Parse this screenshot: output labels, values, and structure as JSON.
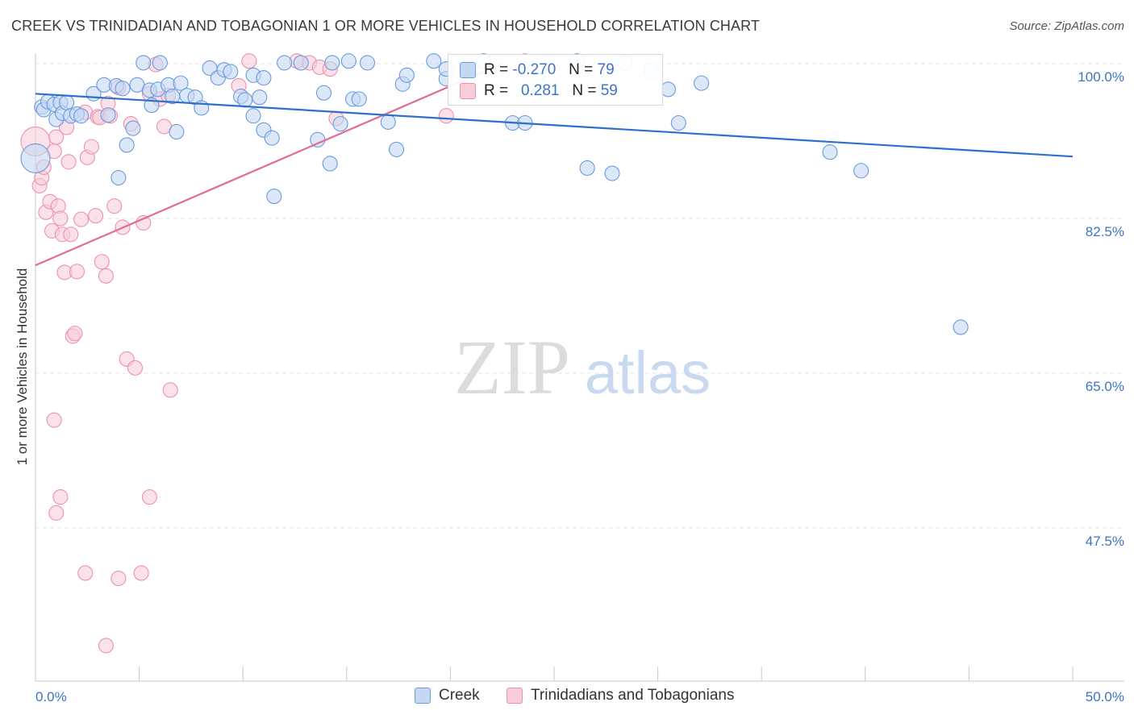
{
  "title": "CREEK VS TRINIDADIAN AND TOBAGONIAN 1 OR MORE VEHICLES IN HOUSEHOLD CORRELATION CHART",
  "source": "Source: ZipAtlas.com",
  "watermark": {
    "zip": "ZIP",
    "atlas": "atlas"
  },
  "colors": {
    "creek": "#6a9ae0",
    "creek_fill": "#c5d8f3",
    "creek_line": "#2c6fcb",
    "trin": "#ee90ad",
    "trin_fill": "#f8cdd9",
    "trin_line": "#e36b93",
    "axis_text": "#3d74c5"
  },
  "legend_top": {
    "creek": {
      "r_label": "R =",
      "r_value": "-0.270",
      "n_label": "N =",
      "n_value": "79"
    },
    "trin": {
      "r_label": "R =",
      "r_value": "0.281",
      "n_label": "N =",
      "n_value": "59"
    }
  },
  "legend_bottom": {
    "creek": "Creek",
    "trin": "Trinidadians and Tobagonians"
  },
  "chart_data": {
    "type": "scatter",
    "title": "CREEK VS TRINIDADIAN AND TOBAGONIAN 1 OR MORE VEHICLES IN HOUSEHOLD CORRELATION CHART",
    "xlabel": "",
    "ylabel": "1 or more Vehicles in Household",
    "xlim": [
      0,
      50
    ],
    "ylim": [
      33,
      101
    ],
    "x_tick_labels": [
      "0.0%",
      "50.0%"
    ],
    "y_ticks": [
      100.0,
      82.5,
      65.0,
      47.5
    ],
    "y_tick_labels": [
      "100.0%",
      "82.5%",
      "65.0%",
      "47.5%"
    ],
    "grid": true,
    "series": [
      {
        "name": "Creek",
        "R": -0.27,
        "N": 79,
        "trend": {
          "x": [
            0,
            50
          ],
          "y": [
            96.6,
            89.5
          ]
        },
        "points": [
          [
            0.0,
            89.3
          ],
          [
            0.3,
            95.1
          ],
          [
            0.4,
            94.8
          ],
          [
            0.6,
            95.7
          ],
          [
            0.9,
            95.4
          ],
          [
            1.2,
            95.6
          ],
          [
            1.0,
            93.7
          ],
          [
            1.3,
            94.4
          ],
          [
            1.5,
            95.6
          ],
          [
            1.7,
            94.1
          ],
          [
            2.0,
            94.3
          ],
          [
            2.2,
            94.1
          ],
          [
            2.8,
            96.6
          ],
          [
            3.3,
            97.6
          ],
          [
            3.5,
            94.2
          ],
          [
            3.9,
            97.5
          ],
          [
            4.2,
            97.2
          ],
          [
            4.0,
            87.1
          ],
          [
            4.4,
            90.8
          ],
          [
            4.7,
            92.7
          ],
          [
            4.9,
            97.6
          ],
          [
            5.2,
            100.1
          ],
          [
            5.5,
            97.0
          ],
          [
            5.6,
            95.3
          ],
          [
            5.9,
            97.1
          ],
          [
            6.0,
            100.1
          ],
          [
            6.4,
            97.6
          ],
          [
            6.6,
            96.3
          ],
          [
            6.8,
            92.3
          ],
          [
            7.0,
            97.8
          ],
          [
            7.3,
            96.4
          ],
          [
            7.7,
            96.2
          ],
          [
            8.0,
            95.0
          ],
          [
            8.4,
            99.5
          ],
          [
            8.8,
            98.4
          ],
          [
            9.1,
            99.3
          ],
          [
            9.4,
            99.1
          ],
          [
            9.9,
            96.3
          ],
          [
            10.1,
            95.9
          ],
          [
            10.5,
            98.7
          ],
          [
            10.8,
            96.2
          ],
          [
            10.5,
            94.1
          ],
          [
            11.0,
            92.5
          ],
          [
            11.4,
            91.6
          ],
          [
            11.0,
            98.4
          ],
          [
            12.0,
            100.1
          ],
          [
            12.8,
            100.1
          ],
          [
            11.5,
            85.0
          ],
          [
            13.6,
            91.4
          ],
          [
            13.9,
            96.7
          ],
          [
            14.2,
            88.7
          ],
          [
            14.7,
            93.2
          ],
          [
            14.3,
            100.1
          ],
          [
            15.1,
            100.3
          ],
          [
            15.3,
            96.0
          ],
          [
            15.6,
            96.0
          ],
          [
            16.0,
            100.1
          ],
          [
            17.0,
            93.4
          ],
          [
            17.4,
            90.3
          ],
          [
            17.7,
            97.7
          ],
          [
            17.9,
            98.7
          ],
          [
            19.2,
            100.3
          ],
          [
            19.8,
            98.3
          ],
          [
            19.8,
            99.4
          ],
          [
            20.8,
            98.2
          ],
          [
            21.6,
            100.3
          ],
          [
            23.0,
            93.3
          ],
          [
            23.6,
            93.3
          ],
          [
            24.3,
            99.0
          ],
          [
            26.1,
            100.3
          ],
          [
            26.6,
            88.2
          ],
          [
            27.8,
            87.6
          ],
          [
            28.4,
            100.1
          ],
          [
            29.7,
            99.2
          ],
          [
            30.5,
            97.1
          ],
          [
            31.0,
            93.3
          ],
          [
            32.1,
            97.8
          ],
          [
            38.3,
            90.0
          ],
          [
            39.8,
            87.9
          ],
          [
            44.6,
            70.2
          ]
        ]
      },
      {
        "name": "Trinidadians and Tobagonians",
        "R": 0.281,
        "N": 59,
        "trend": {
          "x": [
            0,
            22.5
          ],
          "y": [
            77.2,
            100.0
          ]
        },
        "points": [
          [
            0.0,
            91.2
          ],
          [
            0.2,
            86.2
          ],
          [
            0.3,
            87.1
          ],
          [
            0.4,
            88.3
          ],
          [
            0.5,
            83.2
          ],
          [
            0.7,
            84.4
          ],
          [
            0.8,
            81.1
          ],
          [
            0.9,
            90.1
          ],
          [
            1.0,
            91.7
          ],
          [
            1.1,
            83.9
          ],
          [
            1.2,
            82.5
          ],
          [
            1.3,
            80.7
          ],
          [
            1.4,
            76.4
          ],
          [
            1.5,
            92.8
          ],
          [
            1.6,
            88.9
          ],
          [
            1.7,
            80.7
          ],
          [
            1.8,
            69.2
          ],
          [
            1.9,
            69.5
          ],
          [
            2.0,
            76.5
          ],
          [
            2.2,
            82.4
          ],
          [
            2.4,
            94.5
          ],
          [
            2.5,
            89.4
          ],
          [
            2.7,
            90.6
          ],
          [
            2.9,
            82.8
          ],
          [
            3.0,
            94.0
          ],
          [
            3.1,
            93.9
          ],
          [
            3.2,
            77.6
          ],
          [
            3.4,
            76.0
          ],
          [
            3.5,
            95.5
          ],
          [
            3.6,
            94.1
          ],
          [
            3.8,
            83.9
          ],
          [
            4.0,
            97.3
          ],
          [
            4.2,
            81.5
          ],
          [
            4.4,
            66.6
          ],
          [
            4.6,
            93.2
          ],
          [
            4.8,
            65.6
          ],
          [
            5.2,
            82.0
          ],
          [
            5.5,
            96.6
          ],
          [
            5.8,
            99.9
          ],
          [
            6.0,
            96.0
          ],
          [
            6.2,
            92.9
          ],
          [
            6.4,
            96.4
          ],
          [
            6.5,
            63.1
          ],
          [
            0.9,
            59.7
          ],
          [
            1.0,
            49.2
          ],
          [
            1.2,
            51.0
          ],
          [
            2.4,
            42.4
          ],
          [
            4.0,
            41.8
          ],
          [
            5.1,
            42.4
          ],
          [
            5.5,
            51.0
          ],
          [
            3.4,
            34.2
          ],
          [
            9.8,
            97.5
          ],
          [
            10.3,
            100.3
          ],
          [
            12.6,
            100.3
          ],
          [
            13.2,
            100.1
          ],
          [
            13.7,
            99.6
          ],
          [
            14.2,
            99.4
          ],
          [
            14.5,
            93.8
          ],
          [
            19.8,
            94.1
          ],
          [
            23.6,
            100.3
          ]
        ]
      }
    ]
  }
}
